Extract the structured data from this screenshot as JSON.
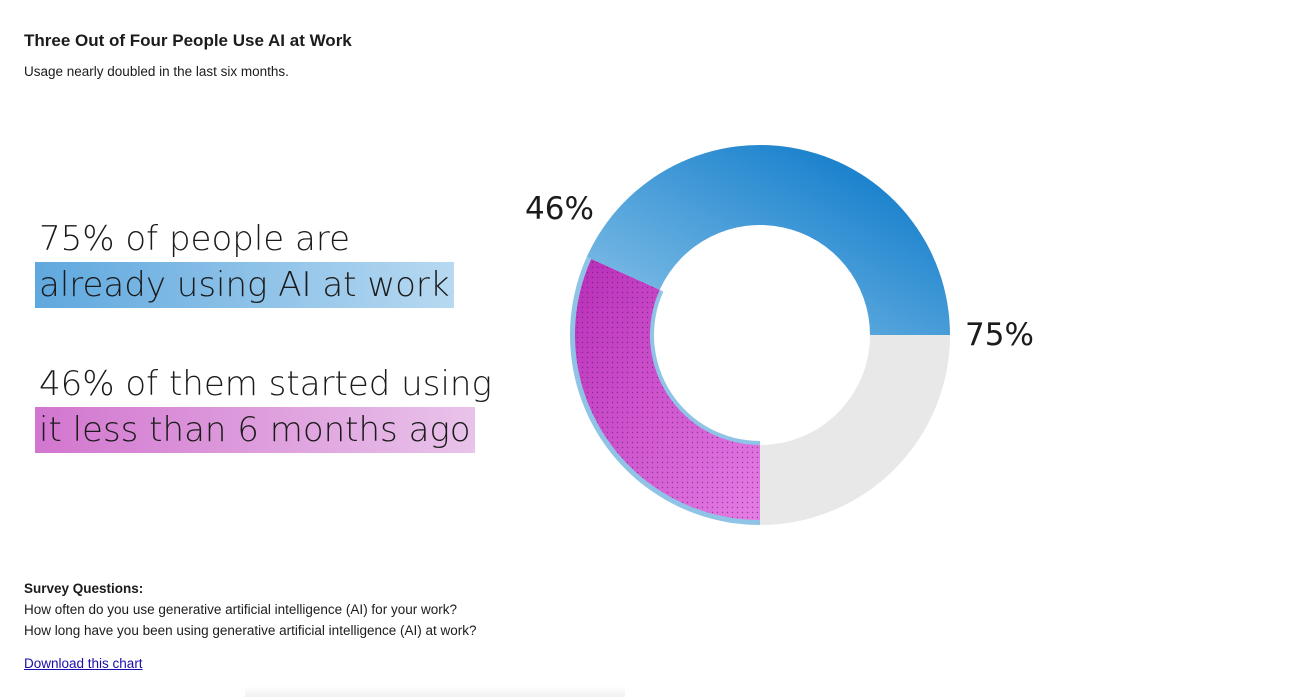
{
  "header": {
    "title": "Three Out of Four People Use AI at Work",
    "subtitle": "Usage nearly doubled in the last six months."
  },
  "stats": {
    "stat1_line1": "75% of people are",
    "stat1_line2": "already using AI at work",
    "stat2_line1": "46% of them started using",
    "stat2_line2": "it less than 6 months ago"
  },
  "chart_data": {
    "type": "pie",
    "style": "donut",
    "series": [
      {
        "name": "",
        "value": 75,
        "unit": "%",
        "color_start": "#6db0df",
        "color_end": "#0072c6"
      },
      {
        "name": "",
        "value": 46,
        "unit": "%",
        "color": "#c535c5",
        "pattern": "dots"
      },
      {
        "name": "",
        "value": 25,
        "unit": "%",
        "color": "#e8e8e8"
      }
    ],
    "labels": [
      "46%",
      "75%"
    ],
    "title": "",
    "notes": "outer ring: 75% blue arc; inner nested: 46% of the 75% shown as purple dotted arc"
  },
  "survey": {
    "heading": "Survey Questions:",
    "q1": "How often do you use generative artificial intelligence (AI) for your work?",
    "q2": "How long have you been using generative artificial intelligence (AI) at work?"
  },
  "footer": {
    "download_label": "Download this chart"
  },
  "colors": {
    "blue_dark": "#0072c6",
    "blue_light": "#6db0df",
    "purple": "#c535c5",
    "purple_light": "#e07ae0",
    "gray": "#e8e8e8",
    "ring_outline": "#8fc4e6"
  }
}
